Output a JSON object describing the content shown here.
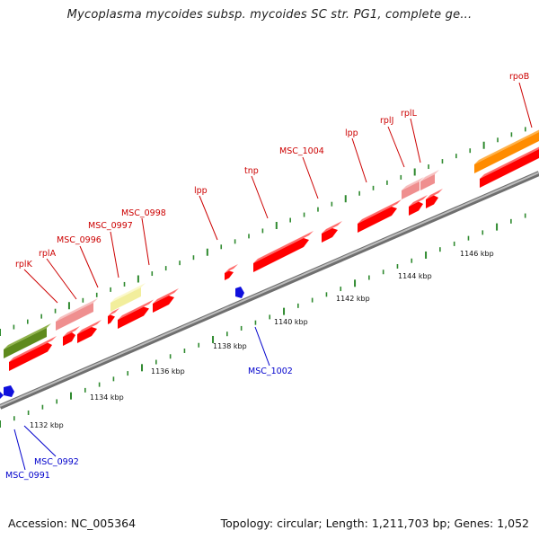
{
  "title": "Mycoplasma mycoides subsp. mycoides SC str. PG1, complete ge...",
  "footer": {
    "accession": "Accession: NC_005364",
    "topology": "Topology: circular; Length: 1,211,703 bp; Genes: 1,052"
  },
  "colors": {
    "gene_red": "#ff0000",
    "gene_pink": "#ef8f8f",
    "gene_yellow": "#f2ee9c",
    "gene_olive": "#5e8a1c",
    "gene_orange": "#ff8c00",
    "gene_blue": "#1010dd",
    "tick_green": "#2f8a2f",
    "label_red": "#cc0000",
    "label_blue": "#0000cc",
    "backbone": "#888888"
  },
  "kbp_labels": [
    "1132 kbp",
    "1134 kbp",
    "1136 kbp",
    "1138 kbp",
    "1140 kbp",
    "1142 kbp",
    "1144 kbp",
    "1146 kbp"
  ],
  "gene_labels": [
    {
      "name": "rpoB",
      "strand": "forward"
    },
    {
      "name": "rplL",
      "strand": "forward"
    },
    {
      "name": "rplJ",
      "strand": "forward"
    },
    {
      "name": "lpp",
      "strand": "forward"
    },
    {
      "name": "MSC_1004",
      "strand": "forward"
    },
    {
      "name": "tnp",
      "strand": "forward"
    },
    {
      "name": "lpp",
      "strand": "forward"
    },
    {
      "name": "MSC_0998",
      "strand": "forward"
    },
    {
      "name": "MSC_0997",
      "strand": "forward"
    },
    {
      "name": "MSC_0996",
      "strand": "forward"
    },
    {
      "name": "rplA",
      "strand": "forward"
    },
    {
      "name": "rplK",
      "strand": "forward"
    },
    {
      "name": "MSC_1002",
      "strand": "reverse"
    },
    {
      "name": "MSC_0992",
      "strand": "reverse"
    },
    {
      "name": "MSC_0991",
      "strand": "reverse"
    }
  ]
}
